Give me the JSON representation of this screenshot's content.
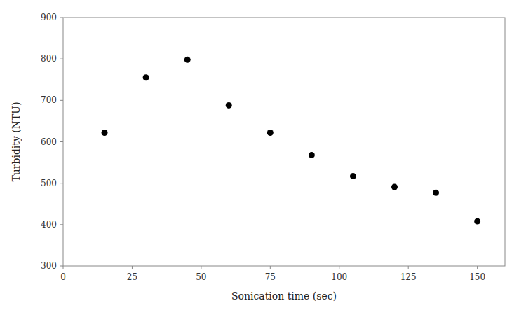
{
  "chart_data": {
    "type": "scatter",
    "x": [
      15,
      30,
      45,
      60,
      75,
      90,
      105,
      120,
      135,
      150
    ],
    "values": [
      622,
      755,
      798,
      688,
      622,
      568,
      517,
      491,
      477,
      408
    ],
    "xlabel": "Sonication time (sec)",
    "ylabel": "Turbidity (NTU)",
    "xlim": [
      0,
      160
    ],
    "ylim": [
      300,
      900
    ],
    "xticks": [
      0,
      25,
      50,
      75,
      100,
      125,
      150
    ],
    "yticks": [
      300,
      400,
      500,
      600,
      700,
      800,
      900
    ],
    "marker": "circle",
    "color": "#000000",
    "grid": false
  }
}
